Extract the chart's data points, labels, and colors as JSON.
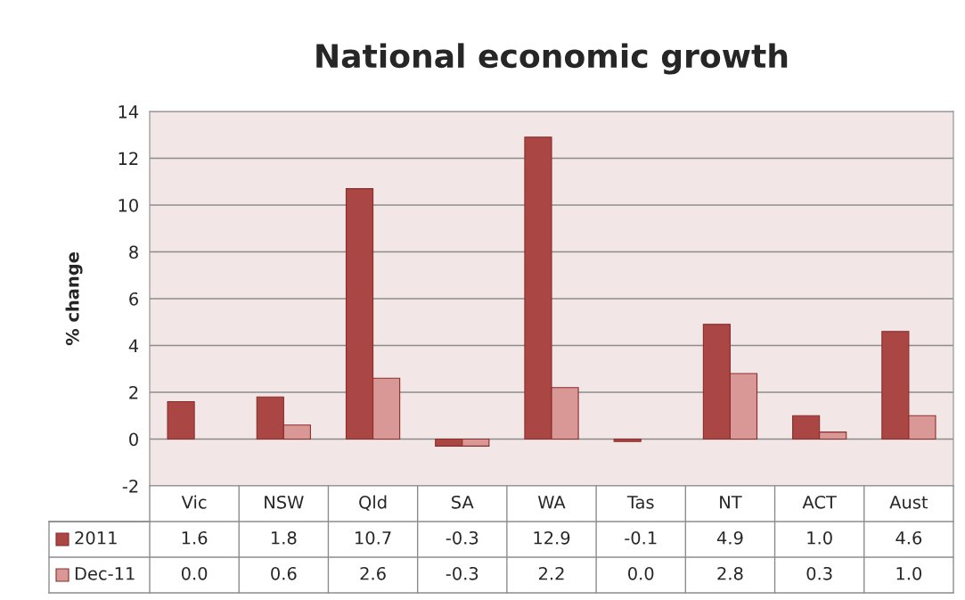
{
  "chart_data": {
    "type": "bar",
    "title": "National economic growth",
    "ylabel": "% change",
    "categories": [
      "Vic",
      "NSW",
      "Qld",
      "SA",
      "WA",
      "Tas",
      "NT",
      "ACT",
      "Aust"
    ],
    "series": [
      {
        "name": "2011",
        "color": "#aa4643",
        "values": [
          1.6,
          1.8,
          10.7,
          -0.3,
          12.9,
          -0.1,
          4.9,
          1.0,
          4.6
        ],
        "value_labels": [
          "1.6",
          "1.8",
          "10.7",
          "-0.3",
          "12.9",
          "-0.1",
          "4.9",
          "1.0",
          "4.6"
        ]
      },
      {
        "name": "Dec-11",
        "color": "#d99795",
        "values": [
          0.0,
          0.6,
          2.6,
          -0.3,
          2.2,
          0.0,
          2.8,
          0.3,
          1.0
        ],
        "value_labels": [
          "0.0",
          "0.6",
          "2.6",
          "-0.3",
          "2.2",
          "0.0",
          "2.8",
          "0.3",
          "1.0"
        ]
      }
    ],
    "ylim": [
      -2,
      14
    ],
    "yticks": [
      -2,
      0,
      2,
      4,
      6,
      8,
      10,
      12,
      14
    ],
    "grid": "y",
    "legend": "bottom"
  }
}
